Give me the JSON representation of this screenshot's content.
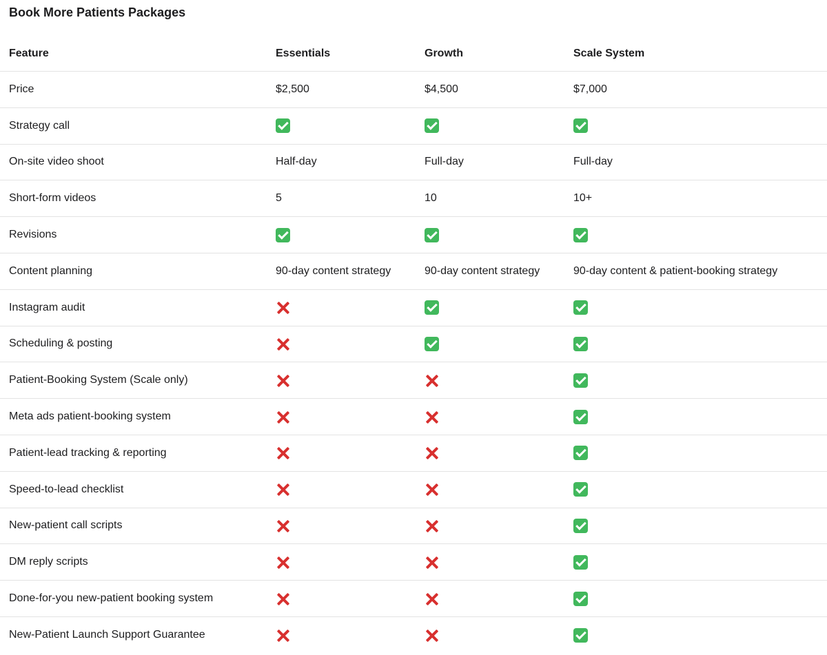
{
  "title": "Book More Patients Packages",
  "columns": [
    "Feature",
    "Essentials",
    "Growth",
    "Scale System"
  ],
  "colors": {
    "check": "#41b85c",
    "cross": "#d8302f",
    "divider": "#e3e3e3"
  },
  "rows": [
    {
      "feature": "Price",
      "values": [
        "$2,500",
        "$4,500",
        "$7,000"
      ]
    },
    {
      "feature": "Strategy call",
      "values": [
        "check-icon",
        "check-icon",
        "check-icon"
      ]
    },
    {
      "feature": "On-site video shoot",
      "values": [
        "Half-day",
        "Full-day",
        "Full-day"
      ]
    },
    {
      "feature": "Short-form videos",
      "values": [
        "5",
        "10",
        "10+"
      ]
    },
    {
      "feature": "Revisions",
      "values": [
        "check-icon",
        "check-icon",
        "check-icon"
      ]
    },
    {
      "feature": "Content planning",
      "values": [
        "90-day content strategy",
        "90-day content strategy",
        "90-day content & patient-booking strategy"
      ]
    },
    {
      "feature": "Instagram audit",
      "values": [
        "cross-icon",
        "check-icon",
        "check-icon"
      ]
    },
    {
      "feature": "Scheduling & posting",
      "values": [
        "cross-icon",
        "check-icon",
        "check-icon"
      ]
    },
    {
      "feature": "Patient-Booking System (Scale only)",
      "values": [
        "cross-icon",
        "cross-icon",
        "check-icon"
      ]
    },
    {
      "feature": "Meta ads patient-booking system",
      "values": [
        "cross-icon",
        "cross-icon",
        "check-icon"
      ]
    },
    {
      "feature": "Patient-lead tracking & reporting",
      "values": [
        "cross-icon",
        "cross-icon",
        "check-icon"
      ]
    },
    {
      "feature": "Speed-to-lead checklist",
      "values": [
        "cross-icon",
        "cross-icon",
        "check-icon"
      ]
    },
    {
      "feature": "New-patient call scripts",
      "values": [
        "cross-icon",
        "cross-icon",
        "check-icon"
      ]
    },
    {
      "feature": "DM reply scripts",
      "values": [
        "cross-icon",
        "cross-icon",
        "check-icon"
      ]
    },
    {
      "feature": "Done-for-you new-patient booking system",
      "values": [
        "cross-icon",
        "cross-icon",
        "check-icon"
      ]
    },
    {
      "feature": "New-Patient Launch Support Guarantee",
      "values": [
        "cross-icon",
        "cross-icon",
        "check-icon"
      ]
    }
  ]
}
